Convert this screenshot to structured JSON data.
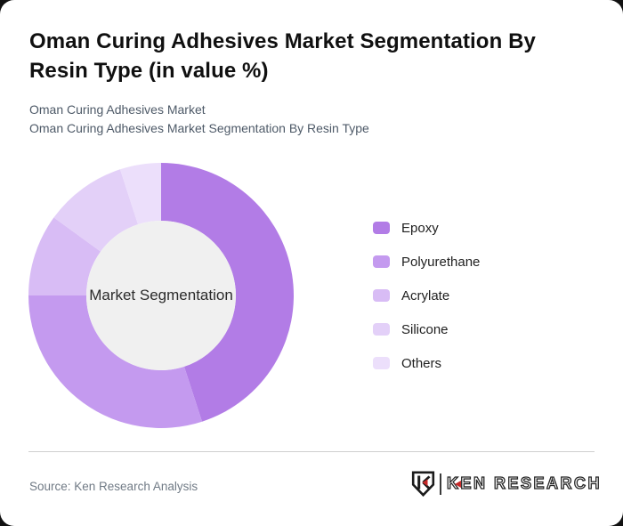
{
  "page": {
    "title": "Oman Curing Adhesives Market Segmentation By Resin Type (in value %)",
    "subtitle_line1": "Oman Curing Adhesives Market",
    "subtitle_line2": "Oman Curing Adhesives Market Segmentation By Resin Type",
    "background_color": "#111111",
    "card_color": "#ffffff"
  },
  "chart_data": {
    "type": "pie",
    "donut": true,
    "title": "Oman Curing Adhesives Market Segmentation By Resin Type (in value %)",
    "center_label": "Market Segmentation",
    "center_fill": "#f0f0f0",
    "start_angle_deg": 0,
    "direction": "clockwise",
    "legend_position": "right",
    "units": "value %",
    "outer_radius": 149,
    "inner_radius": 84,
    "series": [
      {
        "name": "Epoxy",
        "value": 45,
        "color": "#b27ce6"
      },
      {
        "name": "Polyurethane",
        "value": 30,
        "color": "#c49aef"
      },
      {
        "name": "Acrylate",
        "value": 10,
        "color": "#d8bcf5"
      },
      {
        "name": "Silicone",
        "value": 10,
        "color": "#e3d0f8"
      },
      {
        "name": "Others",
        "value": 5,
        "color": "#ecdffb"
      }
    ]
  },
  "footer": {
    "source": "Source: Ken Research Analysis",
    "brand": "KEN RESEARCH"
  }
}
